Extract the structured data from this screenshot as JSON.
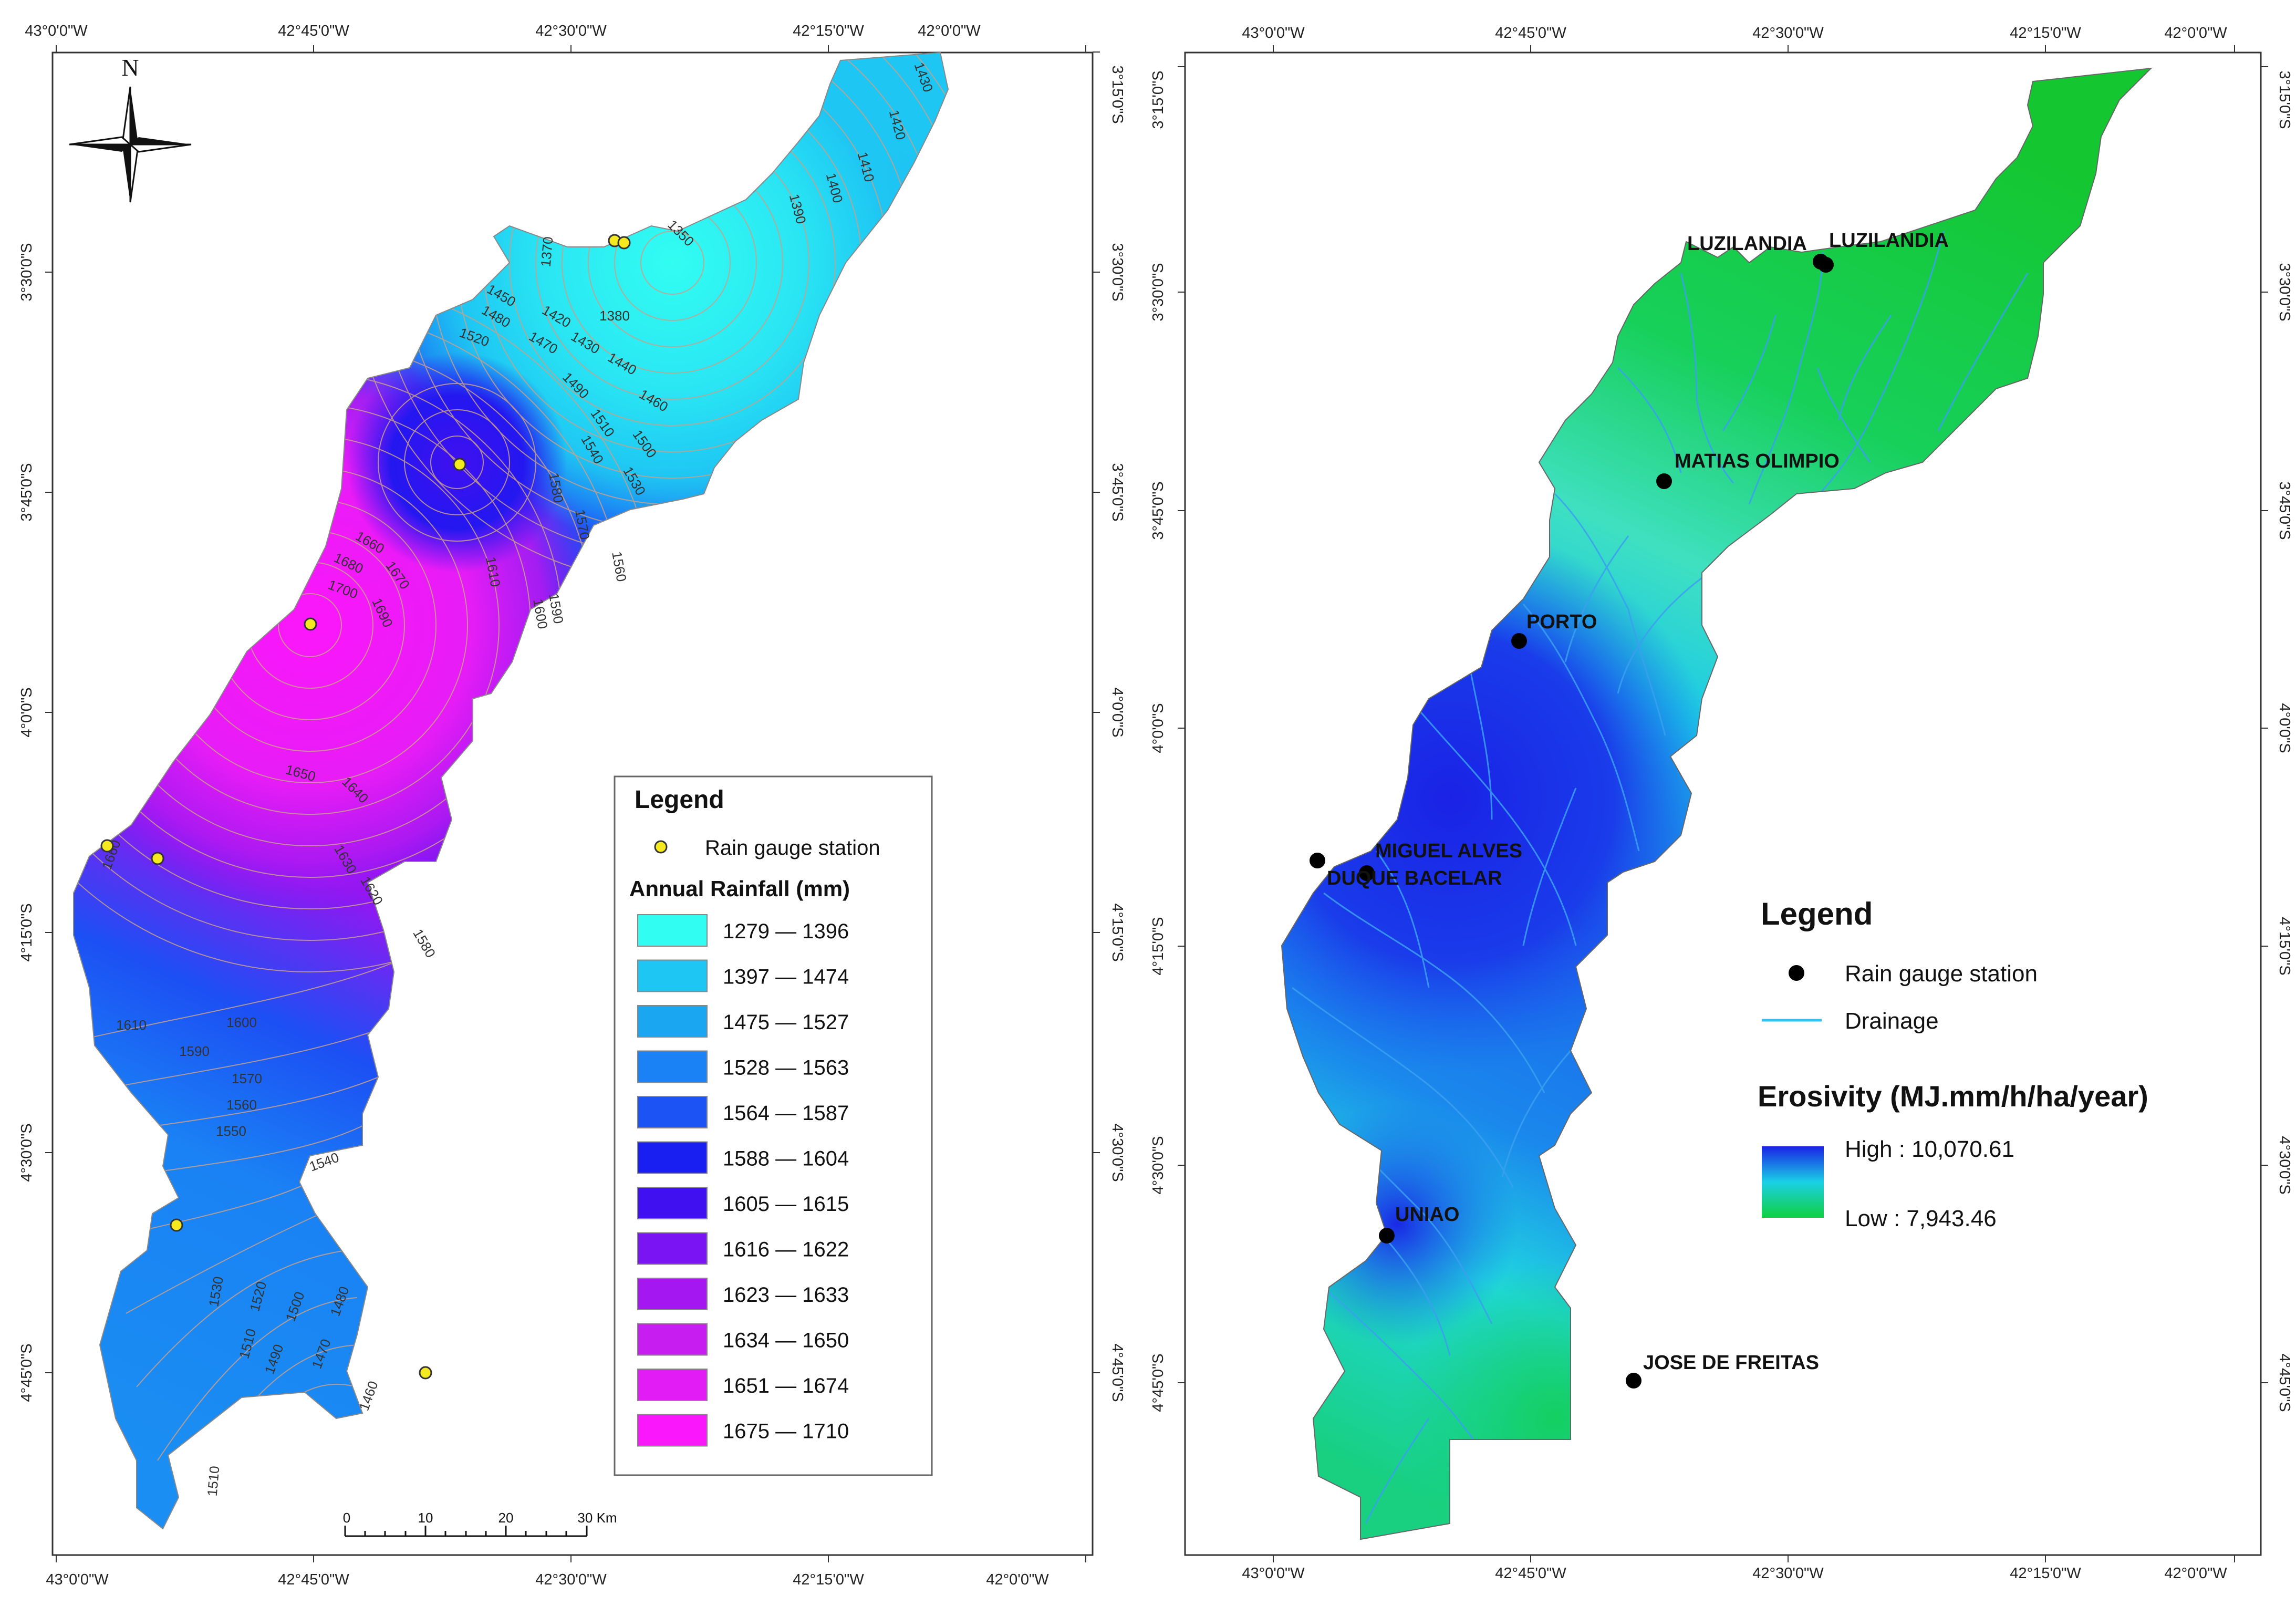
{
  "left_map": {
    "top_ticks": [
      "43°0'0\"W",
      "42°45'0\"W",
      "42°30'0\"W",
      "42°15'0\"W",
      "42°0'0\"W"
    ],
    "bottom_ticks": [
      "43°0'0\"W",
      "42°45'0\"W",
      "42°30'0\"W",
      "42°15'0\"W",
      "42°0'0\"W"
    ],
    "side_ticks": [
      "3°15'0\"S",
      "3°30'0\"S",
      "3°45'0\"S",
      "4°0'0\"S",
      "4°15'0\"S",
      "4°30'0\"S",
      "4°45'0\"S"
    ],
    "north_letter": "N",
    "legend": {
      "title": "Legend",
      "station_label": "Rain gauge station",
      "subtitle": "Annual Rainfall (mm)",
      "classes": [
        {
          "label": "1279 — 1396",
          "color": "#32fdf2"
        },
        {
          "label": "1397 — 1474",
          "color": "#1ec7f3"
        },
        {
          "label": "1475 — 1527",
          "color": "#1aa6f1"
        },
        {
          "label": "1528 — 1563",
          "color": "#1a82f4"
        },
        {
          "label": "1564 — 1587",
          "color": "#1c53f4"
        },
        {
          "label": "1588 — 1604",
          "color": "#1a1ff1"
        },
        {
          "label": "1605 — 1615",
          "color": "#4010f0"
        },
        {
          "label": "1616 — 1622",
          "color": "#7a14f3"
        },
        {
          "label": "1623 — 1633",
          "color": "#a517f1"
        },
        {
          "label": "1634 — 1650",
          "color": "#c71df1"
        },
        {
          "label": "1651 — 1674",
          "color": "#e21cf4"
        },
        {
          "label": "1675 — 1710",
          "color": "#fb17fb"
        }
      ]
    },
    "scalebar": {
      "labels": [
        "0",
        "10",
        "20",
        "30 Km"
      ]
    },
    "contour_labels": [
      "1430",
      "1420",
      "1410",
      "1400",
      "1390",
      "1350",
      "1370",
      "1380",
      "1450",
      "1420",
      "1430",
      "1440",
      "1460",
      "1480",
      "1470",
      "1520",
      "1490",
      "1510",
      "1500",
      "1540",
      "1530",
      "1580",
      "1570",
      "1560",
      "1660",
      "1680",
      "1670",
      "1700",
      "1690",
      "1610",
      "1590",
      "1600",
      "1650",
      "1640",
      "1630",
      "1620",
      "1660",
      "1610",
      "1600",
      "1590",
      "1580",
      "1570",
      "1560",
      "1550",
      "1540",
      "1530",
      "1520",
      "1510",
      "1500",
      "1490",
      "1480",
      "1470",
      "1460",
      "1510"
    ]
  },
  "right_map": {
    "top_ticks": [
      "43°0'0\"W",
      "42°45'0\"W",
      "42°30'0\"W",
      "42°15'0\"W",
      "42°0'0\"W"
    ],
    "bottom_ticks": [
      "43°0'0\"W",
      "42°45'0\"W",
      "42°30'0\"W",
      "42°15'0\"W",
      "42°0'0\"W"
    ],
    "side_ticks": [
      "3°15'0\"S",
      "3°30'0\"S",
      "3°45'0\"S",
      "4°0'0\"S",
      "4°15'0\"S",
      "4°30'0\"S",
      "4°45'0\"S"
    ],
    "stations": [
      "LUZILANDIA",
      "LUZILANDIA",
      "MATIAS OLIMPIO",
      "PORTO",
      "MIGUEL ALVES",
      "DUQUE BACELAR",
      "UNIAO",
      "JOSE DE FREITAS"
    ],
    "legend": {
      "title": "Legend",
      "station_label": "Rain gauge station",
      "drainage_label": "Drainage",
      "subtitle": "Erosivity (MJ.mm/h/ha/year)",
      "high_label": "High : 10,070.61",
      "low_label": "Low : 7,943.46",
      "high_color": "#1a22e6",
      "low_color": "#10d040"
    }
  }
}
